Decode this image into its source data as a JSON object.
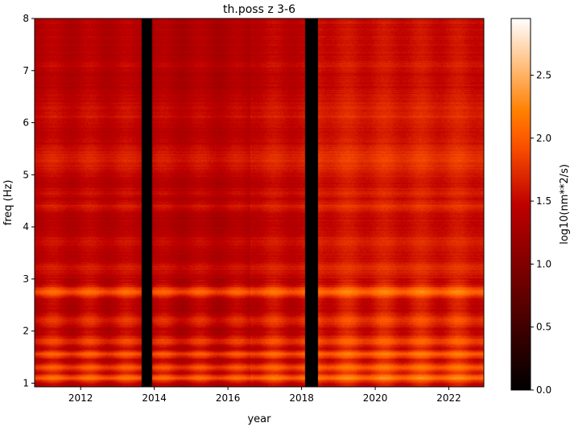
{
  "chart_data": {
    "type": "heatmap",
    "title": "th.poss z 3-6",
    "xlabel": "year",
    "ylabel": "freq (Hz)",
    "colorbar_label": "log10(nm**2/s)",
    "colormap": "gist_heat",
    "xlim": [
      2010.75,
      2022.95
    ],
    "ylim": [
      0.93,
      8.0
    ],
    "x_ticks": [
      2012,
      2014,
      2016,
      2018,
      2020,
      2022
    ],
    "x_tick_labels": [
      "2012",
      "2014",
      "2016",
      "2018",
      "2020",
      "2022"
    ],
    "y_ticks": [
      1,
      2,
      3,
      4,
      5,
      6,
      7,
      8
    ],
    "y_tick_labels": [
      "1",
      "2",
      "3",
      "4",
      "5",
      "6",
      "7",
      "8"
    ],
    "color_range": [
      0.0,
      2.95
    ],
    "colorbar_ticks": [
      0.0,
      0.5,
      1.0,
      1.5,
      2.0,
      2.5
    ],
    "colorbar_tick_labels": [
      "0.0",
      "0.5",
      "1.0",
      "1.5",
      "2.0",
      "2.5"
    ],
    "data_gaps": [
      {
        "start": 2013.65,
        "end": 2013.95
      },
      {
        "start": 2018.1,
        "end": 2018.45
      }
    ],
    "background_level": 1.4,
    "frequency_bands": [
      {
        "freq": 1.1,
        "width": 0.07,
        "level": 2.05
      },
      {
        "freq": 1.3,
        "width": 0.08,
        "level": 1.9
      },
      {
        "freq": 1.55,
        "width": 0.07,
        "level": 1.95
      },
      {
        "freq": 1.8,
        "width": 0.1,
        "level": 1.8
      },
      {
        "freq": 2.2,
        "width": 0.12,
        "level": 1.7
      },
      {
        "freq": 2.75,
        "width": 0.1,
        "level": 2.0
      },
      {
        "freq": 3.2,
        "width": 0.15,
        "level": 1.6
      },
      {
        "freq": 3.7,
        "width": 0.15,
        "level": 1.55
      },
      {
        "freq": 4.4,
        "width": 0.1,
        "level": 1.6
      },
      {
        "freq": 4.65,
        "width": 0.08,
        "level": 1.55
      },
      {
        "freq": 5.3,
        "width": 0.3,
        "level": 1.65
      },
      {
        "freq": 6.2,
        "width": 0.3,
        "level": 1.55
      },
      {
        "freq": 7.1,
        "width": 0.05,
        "level": 1.5
      }
    ],
    "period_trend": [
      {
        "start": 2010.75,
        "end": 2013.65,
        "offset": 0.0
      },
      {
        "start": 2013.95,
        "end": 2016.6,
        "offset": -0.05
      },
      {
        "start": 2016.6,
        "end": 2018.1,
        "offset": 0.05
      },
      {
        "start": 2018.45,
        "end": 2022.95,
        "offset": 0.15
      }
    ]
  }
}
